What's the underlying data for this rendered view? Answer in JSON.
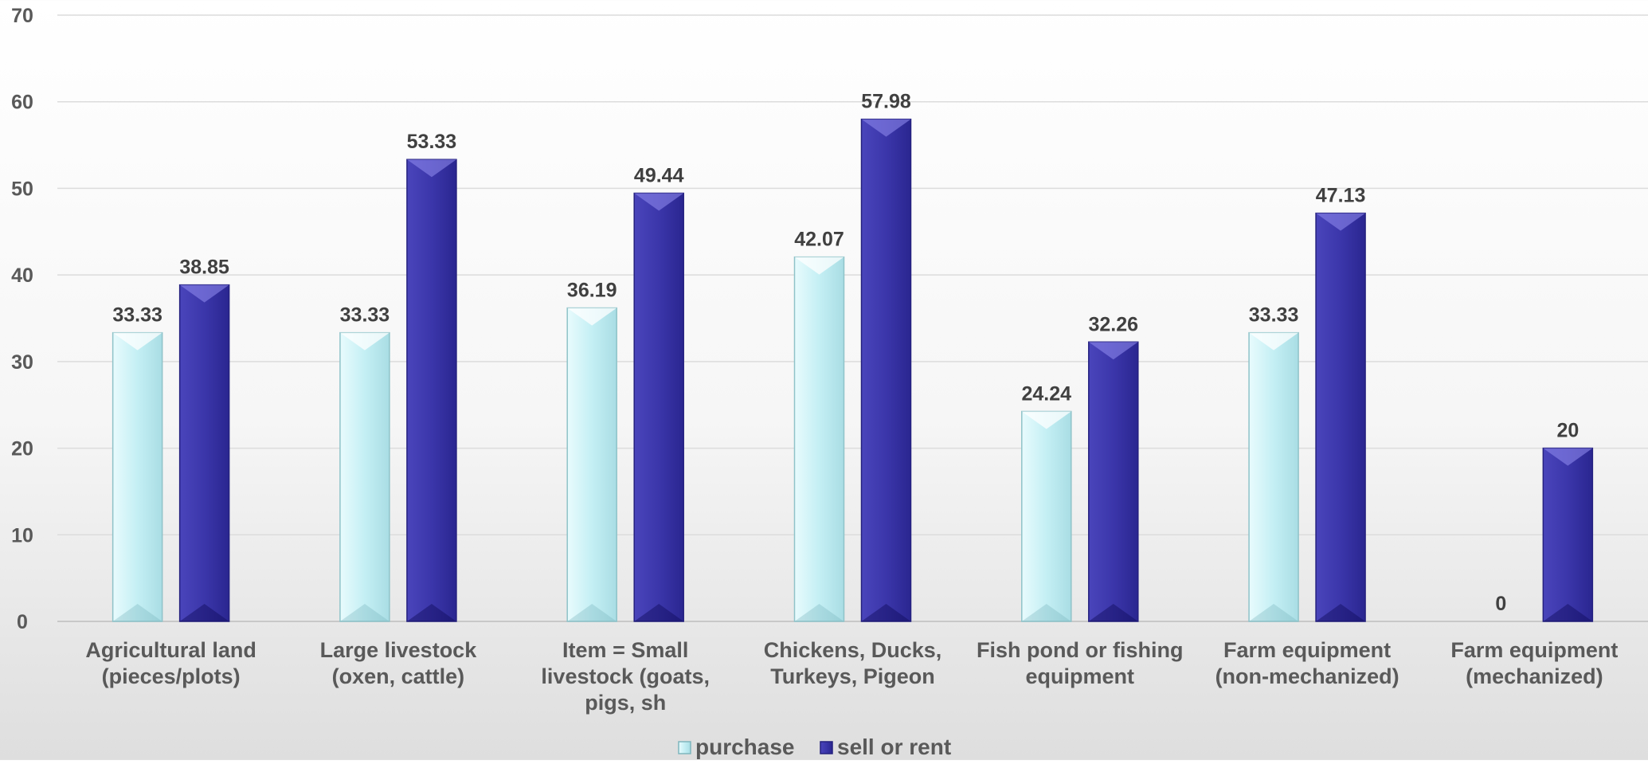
{
  "chart_data": {
    "type": "bar",
    "title": "",
    "xlabel": "",
    "ylabel": "",
    "ylim": [
      0,
      70
    ],
    "yticks": [
      0,
      10,
      20,
      30,
      40,
      50,
      60,
      70
    ],
    "grid": true,
    "legend_position": "bottom",
    "categories": [
      [
        "Agricultural land",
        "(pieces/plots)"
      ],
      [
        "Large livestock",
        "(oxen, cattle)"
      ],
      [
        "Item = Small",
        "livestock (goats,",
        "pigs, sh"
      ],
      [
        "Chickens, Ducks,",
        "Turkeys, Pigeon"
      ],
      [
        "Fish pond or fishing",
        "equipment"
      ],
      [
        "Farm equipment",
        "(non-mechanized)"
      ],
      [
        "Farm equipment",
        "(mechanized)"
      ]
    ],
    "series": [
      {
        "name": "purchase",
        "color": "#c9f0f4",
        "values": [
          33.33,
          33.33,
          36.19,
          42.07,
          24.24,
          33.33,
          0
        ]
      },
      {
        "name": "sell or rent",
        "color": "#3a35a8",
        "values": [
          38.85,
          53.33,
          49.44,
          57.98,
          32.26,
          47.13,
          20
        ]
      }
    ],
    "data_label_text": {
      "purchase": [
        "33.33",
        "33.33",
        "36.19",
        "42.07",
        "24.24",
        "33.33",
        "0"
      ],
      "sell or rent": [
        "38.85",
        "53.33",
        "49.44",
        "57.98",
        "32.26",
        "47.13",
        "20"
      ]
    }
  }
}
